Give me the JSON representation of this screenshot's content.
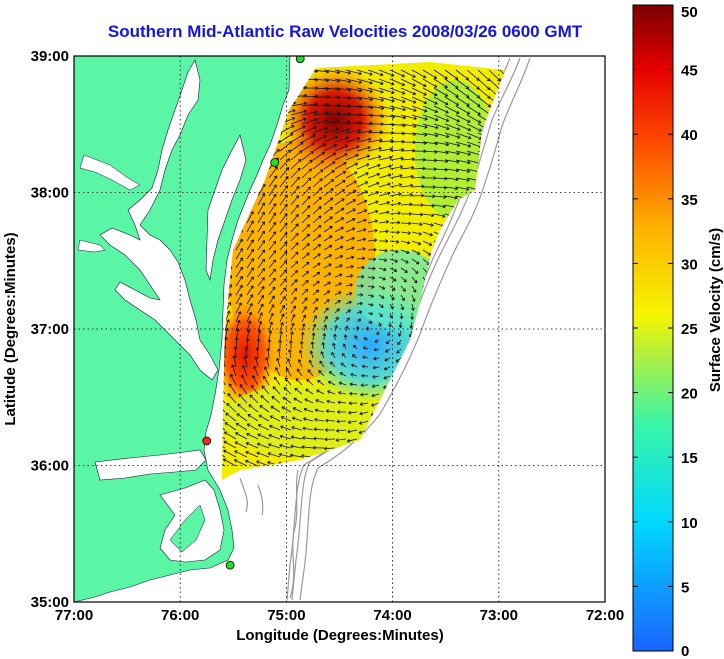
{
  "title": "Southern Mid-Atlantic Raw Velocities 2008/03/26 0600 GMT",
  "x_axis": {
    "label": "Longitude (Degrees:Minutes)",
    "ticks": [
      "77:00",
      "76:00",
      "75:00",
      "74:00",
      "73:00",
      "72:00"
    ]
  },
  "y_axis": {
    "label": "Latitude (Degrees:Minutes)",
    "ticks": [
      "39:00",
      "38:00",
      "37:00",
      "36:00",
      "35:00"
    ]
  },
  "colorbar": {
    "label": "Surface Velocity (cm/s)",
    "ticks": [
      "50",
      "45",
      "40",
      "35",
      "30",
      "25",
      "20",
      "15",
      "10",
      "5",
      "0"
    ],
    "colormap": "jet",
    "range": [
      0,
      50
    ]
  },
  "colors": {
    "land": "#5af5a5",
    "title": "#1414e6",
    "bathymetry": "#9a9a9a",
    "station_green": "#22dd22",
    "station_red": "#ff2020"
  },
  "chart_data": {
    "type": "heatmap",
    "x_range": [
      -77.0,
      -72.0
    ],
    "y_range": [
      35.0,
      39.0
    ],
    "color_range": [
      0,
      50
    ],
    "grid": "dotted",
    "stations": [
      {
        "lon": -74.87,
        "lat": 38.98,
        "color": "green"
      },
      {
        "lon": -75.11,
        "lat": 38.22,
        "color": "green"
      },
      {
        "lon": -75.75,
        "lat": 36.18,
        "color": "red"
      },
      {
        "lon": -75.53,
        "lat": 35.27,
        "color": "green"
      }
    ]
  }
}
